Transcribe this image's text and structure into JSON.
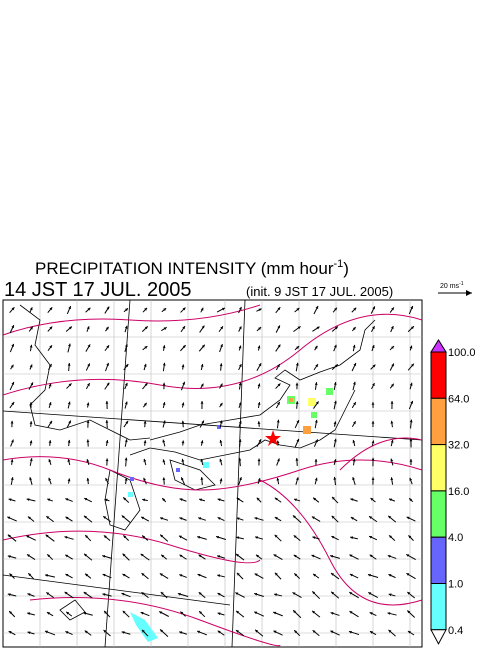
{
  "header": {
    "title": "PRECIPITATION INTENSITY (mm hour",
    "title_sup": "-1",
    "title_end": ")",
    "time": "14 JST 17 JUL. 2005",
    "init": "(init. 9 JST 17 JUL. 2005)"
  },
  "reference_vector": {
    "label": "20 ms",
    "label_sup": "-1"
  },
  "colorbar": {
    "colors": [
      "#cc33ff",
      "#ff0000",
      "#ffa040",
      "#ffff66",
      "#66ff66",
      "#6666ff",
      "#66ffff",
      "#ffffff"
    ],
    "labels": [
      "100.0",
      "64.0",
      "32.0",
      "16.0",
      "4.0",
      "1.0",
      "0.4"
    ]
  }
}
